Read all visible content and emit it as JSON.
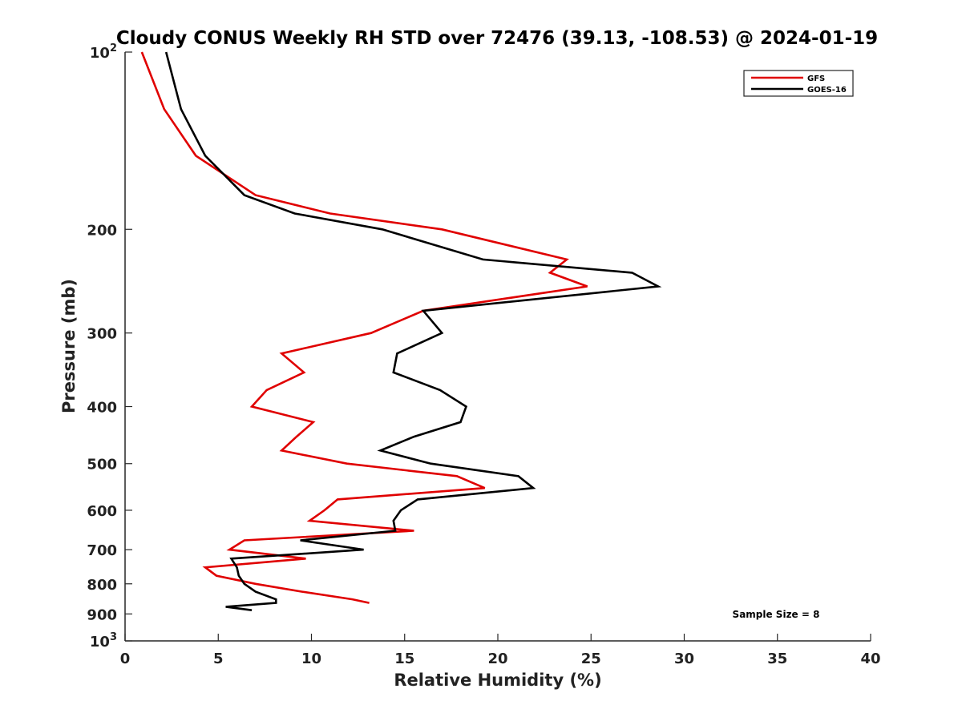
{
  "chart_data": {
    "type": "line",
    "title": "Cloudy CONUS Weekly RH STD over 72476 (39.13, -108.53) @ 2024-01-19",
    "xlabel": "Relative Humidity (%)",
    "ylabel": "Pressure (mb)",
    "xlim": [
      0,
      40
    ],
    "ylim": [
      1000,
      100
    ],
    "yscale": "log",
    "y_inverted": true,
    "grid": false,
    "legend_position": "top-right",
    "x_ticks": [
      0,
      5,
      10,
      15,
      20,
      25,
      30,
      35,
      40
    ],
    "y_ticks": [
      100,
      200,
      300,
      400,
      500,
      600,
      700,
      800,
      900,
      1000
    ],
    "y_tick_labels": [
      {
        "base": "10",
        "exp": "2"
      },
      {
        "base": "200",
        "exp": ""
      },
      {
        "base": "300",
        "exp": ""
      },
      {
        "base": "400",
        "exp": ""
      },
      {
        "base": "500",
        "exp": ""
      },
      {
        "base": "600",
        "exp": ""
      },
      {
        "base": "700",
        "exp": ""
      },
      {
        "base": "800",
        "exp": ""
      },
      {
        "base": "900",
        "exp": ""
      },
      {
        "base": "10",
        "exp": "3"
      }
    ],
    "annotation": "Sample Size = 8",
    "series": [
      {
        "name": "GFS",
        "color": "#e00000",
        "points": [
          [
            0.9,
            100
          ],
          [
            2.1,
            125
          ],
          [
            3.8,
            150
          ],
          [
            7.0,
            175
          ],
          [
            11.0,
            188
          ],
          [
            17.0,
            200
          ],
          [
            23.7,
            225
          ],
          [
            22.8,
            237
          ],
          [
            24.8,
            250
          ],
          [
            16.0,
            275
          ],
          [
            13.2,
            300
          ],
          [
            8.4,
            325
          ],
          [
            9.6,
            350
          ],
          [
            7.6,
            375
          ],
          [
            6.8,
            400
          ],
          [
            10.1,
            425
          ],
          [
            9.2,
            450
          ],
          [
            8.4,
            475
          ],
          [
            11.9,
            500
          ],
          [
            17.8,
            525
          ],
          [
            19.3,
            550
          ],
          [
            11.4,
            575
          ],
          [
            10.7,
            600
          ],
          [
            9.9,
            625
          ],
          [
            15.5,
            650
          ],
          [
            6.4,
            675
          ],
          [
            5.6,
            700
          ],
          [
            9.7,
            725
          ],
          [
            4.3,
            750
          ],
          [
            4.9,
            775
          ],
          [
            7.0,
            800
          ],
          [
            9.5,
            825
          ],
          [
            12.2,
            850
          ],
          [
            13.1,
            862
          ]
        ]
      },
      {
        "name": "GOES-16",
        "color": "#000000",
        "points": [
          [
            2.2,
            100
          ],
          [
            3.0,
            125
          ],
          [
            4.3,
            150
          ],
          [
            6.4,
            175
          ],
          [
            9.1,
            188
          ],
          [
            13.8,
            200
          ],
          [
            19.2,
            225
          ],
          [
            27.2,
            237
          ],
          [
            28.6,
            250
          ],
          [
            16.0,
            275
          ],
          [
            17.0,
            300
          ],
          [
            14.6,
            325
          ],
          [
            14.4,
            350
          ],
          [
            16.9,
            375
          ],
          [
            18.3,
            400
          ],
          [
            18.0,
            425
          ],
          [
            15.5,
            450
          ],
          [
            13.7,
            475
          ],
          [
            16.4,
            500
          ],
          [
            21.1,
            525
          ],
          [
            21.9,
            550
          ],
          [
            15.7,
            575
          ],
          [
            14.8,
            600
          ],
          [
            14.4,
            625
          ],
          [
            14.5,
            650
          ],
          [
            9.4,
            675
          ],
          [
            12.8,
            700
          ],
          [
            5.7,
            725
          ],
          [
            6.0,
            750
          ],
          [
            6.1,
            775
          ],
          [
            6.4,
            800
          ],
          [
            7.0,
            825
          ],
          [
            8.1,
            850
          ],
          [
            8.1,
            862
          ],
          [
            5.4,
            875
          ],
          [
            6.8,
            887
          ]
        ]
      }
    ]
  }
}
